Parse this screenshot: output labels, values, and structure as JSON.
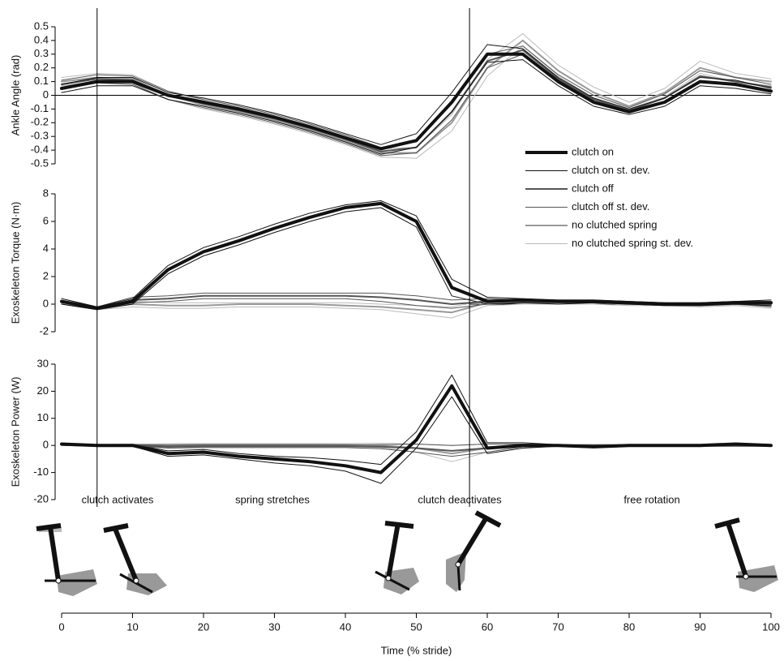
{
  "chart_data": [
    {
      "type": "line",
      "ylabel": "Ankle Angle (rad)",
      "x": [
        0,
        5,
        10,
        15,
        20,
        25,
        30,
        35,
        40,
        45,
        50,
        55,
        60,
        65,
        70,
        75,
        80,
        85,
        90,
        95,
        100
      ],
      "xlim": [
        0,
        100
      ],
      "ylim": [
        -0.5,
        0.5
      ],
      "yticks": [
        -0.5,
        -0.4,
        -0.3,
        -0.2,
        -0.1,
        0,
        0.1,
        0.2,
        0.3,
        0.4,
        0.5
      ],
      "zero_line": true,
      "vlines": [
        5,
        57.5
      ],
      "series": [
        {
          "name": "clutch on",
          "color": "#111111",
          "width": 4,
          "values": [
            0.05,
            0.1,
            0.1,
            0.0,
            -0.05,
            -0.1,
            -0.16,
            -0.23,
            -0.31,
            -0.39,
            -0.33,
            -0.05,
            0.3,
            0.3,
            0.1,
            -0.05,
            -0.12,
            -0.05,
            0.1,
            0.08,
            0.03
          ]
        },
        {
          "name": "clutch on st. dev.",
          "color": "#111111",
          "width": 1,
          "lower": [
            0.02,
            0.07,
            0.07,
            -0.03,
            -0.08,
            -0.13,
            -0.19,
            -0.26,
            -0.34,
            -0.43,
            -0.38,
            -0.12,
            0.24,
            0.26,
            0.07,
            -0.08,
            -0.14,
            -0.08,
            0.07,
            0.05,
            0.01
          ],
          "upper": [
            0.08,
            0.13,
            0.13,
            0.02,
            -0.02,
            -0.07,
            -0.13,
            -0.2,
            -0.28,
            -0.36,
            -0.28,
            0.02,
            0.37,
            0.34,
            0.13,
            -0.02,
            -0.1,
            -0.02,
            0.13,
            0.11,
            0.05
          ]
        },
        {
          "name": "clutch off",
          "color": "#555555",
          "width": 2,
          "values": [
            0.08,
            0.12,
            0.11,
            0.0,
            -0.06,
            -0.11,
            -0.17,
            -0.24,
            -0.32,
            -0.41,
            -0.38,
            -0.12,
            0.25,
            0.33,
            0.12,
            -0.03,
            -0.11,
            -0.02,
            0.14,
            0.1,
            0.06
          ]
        },
        {
          "name": "clutch off st. dev.",
          "color": "#555555",
          "width": 1,
          "lower": [
            0.05,
            0.09,
            0.08,
            -0.03,
            -0.09,
            -0.14,
            -0.2,
            -0.27,
            -0.35,
            -0.44,
            -0.42,
            -0.18,
            0.2,
            0.3,
            0.09,
            -0.06,
            -0.13,
            -0.05,
            0.1,
            0.07,
            0.04
          ],
          "upper": [
            0.11,
            0.15,
            0.14,
            0.03,
            -0.03,
            -0.08,
            -0.14,
            -0.21,
            -0.29,
            -0.38,
            -0.34,
            -0.06,
            0.3,
            0.36,
            0.15,
            0.0,
            -0.09,
            0.01,
            0.18,
            0.13,
            0.08
          ]
        },
        {
          "name": "no clutched spring",
          "color": "#999999",
          "width": 2,
          "values": [
            0.1,
            0.13,
            0.12,
            0.0,
            -0.07,
            -0.12,
            -0.18,
            -0.25,
            -0.33,
            -0.42,
            -0.42,
            -0.2,
            0.2,
            0.4,
            0.18,
            0.02,
            -0.08,
            0.02,
            0.2,
            0.13,
            0.1
          ]
        },
        {
          "name": "no clutched spring st. dev.",
          "color": "#bbbbbb",
          "width": 1,
          "lower": [
            0.07,
            0.1,
            0.09,
            -0.03,
            -0.1,
            -0.15,
            -0.21,
            -0.28,
            -0.36,
            -0.45,
            -0.46,
            -0.26,
            0.14,
            0.36,
            0.14,
            -0.02,
            -0.1,
            -0.01,
            0.16,
            0.1,
            0.07
          ],
          "upper": [
            0.13,
            0.16,
            0.15,
            0.03,
            -0.04,
            -0.09,
            -0.15,
            -0.22,
            -0.3,
            -0.39,
            -0.38,
            -0.14,
            0.26,
            0.45,
            0.22,
            0.06,
            -0.05,
            0.05,
            0.25,
            0.16,
            0.12
          ]
        }
      ]
    },
    {
      "type": "line",
      "ylabel": "Exoskeleton Torque (N·m)",
      "x": [
        0,
        5,
        10,
        15,
        20,
        25,
        30,
        35,
        40,
        45,
        50,
        55,
        60,
        65,
        70,
        75,
        80,
        85,
        90,
        95,
        100
      ],
      "xlim": [
        0,
        100
      ],
      "ylim": [
        -2,
        8
      ],
      "yticks": [
        -2,
        0,
        2,
        4,
        6,
        8
      ],
      "zero_line": true,
      "series": [
        {
          "color": "#111111",
          "width": 4,
          "values": [
            0.2,
            -0.3,
            0.2,
            2.5,
            3.8,
            4.6,
            5.5,
            6.3,
            7.0,
            7.3,
            6.0,
            1.2,
            0.2,
            0.3,
            0.2,
            0.2,
            0.1,
            0.0,
            0.0,
            0.1,
            0.1
          ]
        },
        {
          "color": "#111111",
          "width": 1,
          "lower": [
            0.0,
            -0.4,
            0.0,
            2.2,
            3.5,
            4.3,
            5.2,
            6.0,
            6.7,
            7.0,
            5.6,
            0.6,
            0.0,
            0.1,
            0.0,
            0.1,
            0.0,
            -0.1,
            -0.1,
            0.0,
            -0.1
          ],
          "upper": [
            0.4,
            -0.2,
            0.4,
            2.8,
            4.1,
            4.9,
            5.8,
            6.6,
            7.2,
            7.5,
            6.4,
            1.8,
            0.5,
            0.4,
            0.3,
            0.3,
            0.2,
            0.1,
            0.1,
            0.2,
            0.3
          ]
        },
        {
          "color": "#555555",
          "width": 2,
          "values": [
            0.2,
            -0.3,
            0.3,
            0.4,
            0.6,
            0.6,
            0.6,
            0.6,
            0.6,
            0.5,
            0.3,
            0.0,
            0.2,
            0.2,
            0.2,
            0.2,
            0.1,
            0.0,
            0.0,
            0.1,
            0.0
          ]
        },
        {
          "color": "#555555",
          "width": 1,
          "lower": [
            0.0,
            -0.4,
            0.1,
            0.2,
            0.4,
            0.4,
            0.4,
            0.4,
            0.4,
            0.2,
            -0.1,
            -0.3,
            0.0,
            0.1,
            0.1,
            0.1,
            0.0,
            -0.1,
            -0.1,
            0.0,
            -0.2
          ],
          "upper": [
            0.4,
            -0.2,
            0.5,
            0.6,
            0.8,
            0.8,
            0.8,
            0.8,
            0.8,
            0.8,
            0.6,
            0.3,
            0.4,
            0.3,
            0.3,
            0.3,
            0.2,
            0.1,
            0.1,
            0.2,
            0.2
          ]
        },
        {
          "color": "#999999",
          "width": 2,
          "values": [
            0.1,
            -0.3,
            0.0,
            -0.1,
            -0.1,
            0.0,
            0.0,
            0.0,
            -0.1,
            -0.2,
            -0.4,
            -0.6,
            0.1,
            0.1,
            0.1,
            0.1,
            0.0,
            0.0,
            -0.1,
            0.0,
            -0.1
          ]
        },
        {
          "color": "#bbbbbb",
          "width": 1,
          "lower": [
            0.0,
            -0.4,
            -0.2,
            -0.3,
            -0.3,
            -0.2,
            -0.2,
            -0.2,
            -0.3,
            -0.4,
            -0.7,
            -1.0,
            -0.1,
            0.0,
            0.0,
            0.0,
            -0.1,
            -0.1,
            -0.2,
            -0.1,
            -0.3
          ],
          "upper": [
            0.2,
            -0.2,
            0.2,
            0.1,
            0.1,
            0.1,
            0.1,
            0.1,
            0.1,
            0.0,
            -0.1,
            -0.2,
            0.3,
            0.2,
            0.2,
            0.2,
            0.1,
            0.1,
            0.0,
            0.1,
            0.1
          ]
        }
      ]
    },
    {
      "type": "line",
      "ylabel": "Exoskeleton Power (W)",
      "xlabel": "Time (% stride)",
      "x": [
        0,
        5,
        10,
        15,
        20,
        25,
        30,
        35,
        40,
        45,
        50,
        55,
        60,
        65,
        70,
        75,
        80,
        85,
        90,
        95,
        100
      ],
      "xlim": [
        0,
        100
      ],
      "xticks": [
        0,
        10,
        20,
        30,
        40,
        50,
        60,
        70,
        80,
        90,
        100
      ],
      "ylim": [
        -20,
        30
      ],
      "yticks": [
        -20,
        -10,
        0,
        10,
        20,
        30
      ],
      "annotations": [
        "clutch activates",
        "spring stretches",
        "clutch deactivates",
        "free rotation"
      ],
      "series": [
        {
          "color": "#111111",
          "width": 4,
          "values": [
            0.5,
            0,
            0,
            -3,
            -2.5,
            -4,
            -5,
            -6,
            -7.5,
            -10,
            2,
            22,
            -1,
            0,
            0,
            -0.5,
            0,
            0,
            0,
            0.5,
            0
          ]
        },
        {
          "color": "#111111",
          "width": 1,
          "lower": [
            0.3,
            -0.2,
            -0.3,
            -4,
            -3.5,
            -5,
            -6.5,
            -7.5,
            -9.5,
            -14,
            -1,
            18,
            -3,
            -1,
            -0.3,
            -0.8,
            -0.3,
            -0.3,
            -0.3,
            0.2,
            -0.3
          ],
          "upper": [
            0.7,
            0.2,
            0.3,
            -2,
            -1.5,
            -3,
            -4,
            -4.5,
            -5.5,
            -7,
            5,
            26,
            1,
            1,
            0.3,
            -0.2,
            0.3,
            0.3,
            0.3,
            0.8,
            0.3
          ]
        },
        {
          "color": "#555555",
          "width": 2,
          "values": [
            0.3,
            0,
            0,
            -0.5,
            -0.3,
            -0.3,
            -0.3,
            -0.3,
            -0.3,
            -0.5,
            -1,
            -2,
            -1,
            0,
            0,
            0,
            0,
            0,
            0,
            0,
            0
          ]
        },
        {
          "color": "#555555",
          "width": 1,
          "lower": [
            0,
            -0.3,
            -0.3,
            -1,
            -0.8,
            -0.8,
            -0.8,
            -0.8,
            -0.8,
            -1.2,
            -2.5,
            -4,
            -2.5,
            -0.5,
            -0.3,
            -0.3,
            -0.3,
            -0.3,
            -0.3,
            -0.3,
            -0.3
          ],
          "upper": [
            0.6,
            0.3,
            0.3,
            0,
            0.2,
            0.2,
            0.2,
            0.2,
            0.2,
            0.3,
            0.5,
            0,
            0.5,
            0.5,
            0.3,
            0.3,
            0.3,
            0.3,
            0.3,
            0.3,
            0.3
          ]
        },
        {
          "color": "#999999",
          "width": 2,
          "values": [
            0.3,
            0,
            0.2,
            0.2,
            0.3,
            0.3,
            0.3,
            0.3,
            0.2,
            0,
            -1,
            -3,
            -1,
            0,
            0,
            0,
            0,
            0,
            0,
            0,
            0
          ]
        },
        {
          "color": "#bbbbbb",
          "width": 1,
          "lower": [
            0,
            -0.3,
            -0.1,
            -0.2,
            -0.1,
            -0.1,
            -0.1,
            -0.1,
            -0.3,
            -0.8,
            -2.5,
            -6,
            -2.5,
            -0.5,
            -0.3,
            -0.3,
            -0.3,
            -0.3,
            -0.3,
            -0.3,
            -0.3
          ],
          "upper": [
            0.6,
            0.3,
            0.5,
            0.6,
            0.7,
            0.7,
            0.7,
            0.7,
            0.7,
            0.8,
            0.5,
            0,
            0.5,
            0.5,
            0.3,
            0.3,
            0.3,
            0.3,
            0.3,
            0.3,
            0.3
          ]
        }
      ]
    }
  ]
}
